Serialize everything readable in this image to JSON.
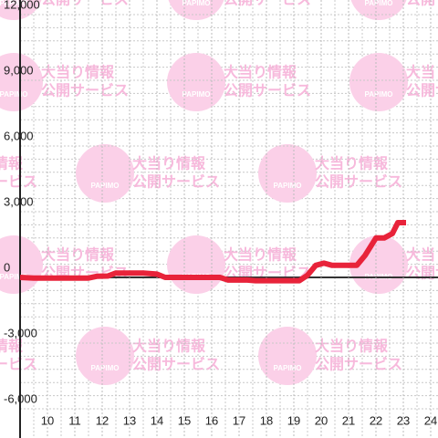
{
  "chart_data": {
    "type": "line",
    "watermark": {
      "lines": [
        "大当り情報",
        "公開サービス"
      ],
      "logo": "PAPIMO"
    },
    "x": [
      9.0,
      9.5,
      11.5,
      11.8,
      12.2,
      12.5,
      13.5,
      14.0,
      14.3,
      16.3,
      16.6,
      17.3,
      17.6,
      19.2,
      19.5,
      19.8,
      20.1,
      20.4,
      21.3,
      21.6,
      22.0,
      22.3,
      22.6,
      22.8,
      23.1
    ],
    "series": [
      {
        "color": "#e8233a",
        "values": [
          0,
          -30,
          -30,
          50,
          60,
          200,
          200,
          150,
          0,
          0,
          -120,
          -120,
          -150,
          -150,
          100,
          550,
          650,
          550,
          550,
          1000,
          1800,
          1800,
          2000,
          2500,
          2500
        ]
      }
    ],
    "xlim": [
      9,
      24.3
    ],
    "xticks": [
      10,
      11,
      12,
      13,
      14,
      15,
      16,
      17,
      18,
      19,
      20,
      21,
      22,
      23,
      24
    ],
    "x_minor_step": 0.5,
    "ylim": [
      -6000,
      12000
    ],
    "yticks": [
      {
        "value": -6000,
        "label": "-6,000"
      },
      {
        "value": -3000,
        "label": "-3,000"
      },
      0,
      {
        "value": 3000,
        "label": "3,000"
      },
      {
        "value": 6000,
        "label": "6,000"
      },
      {
        "value": 9000,
        "label": "9,000"
      },
      {
        "value": 12000,
        "label": "12,000"
      }
    ],
    "y_minor_step": 600,
    "grid": true
  }
}
